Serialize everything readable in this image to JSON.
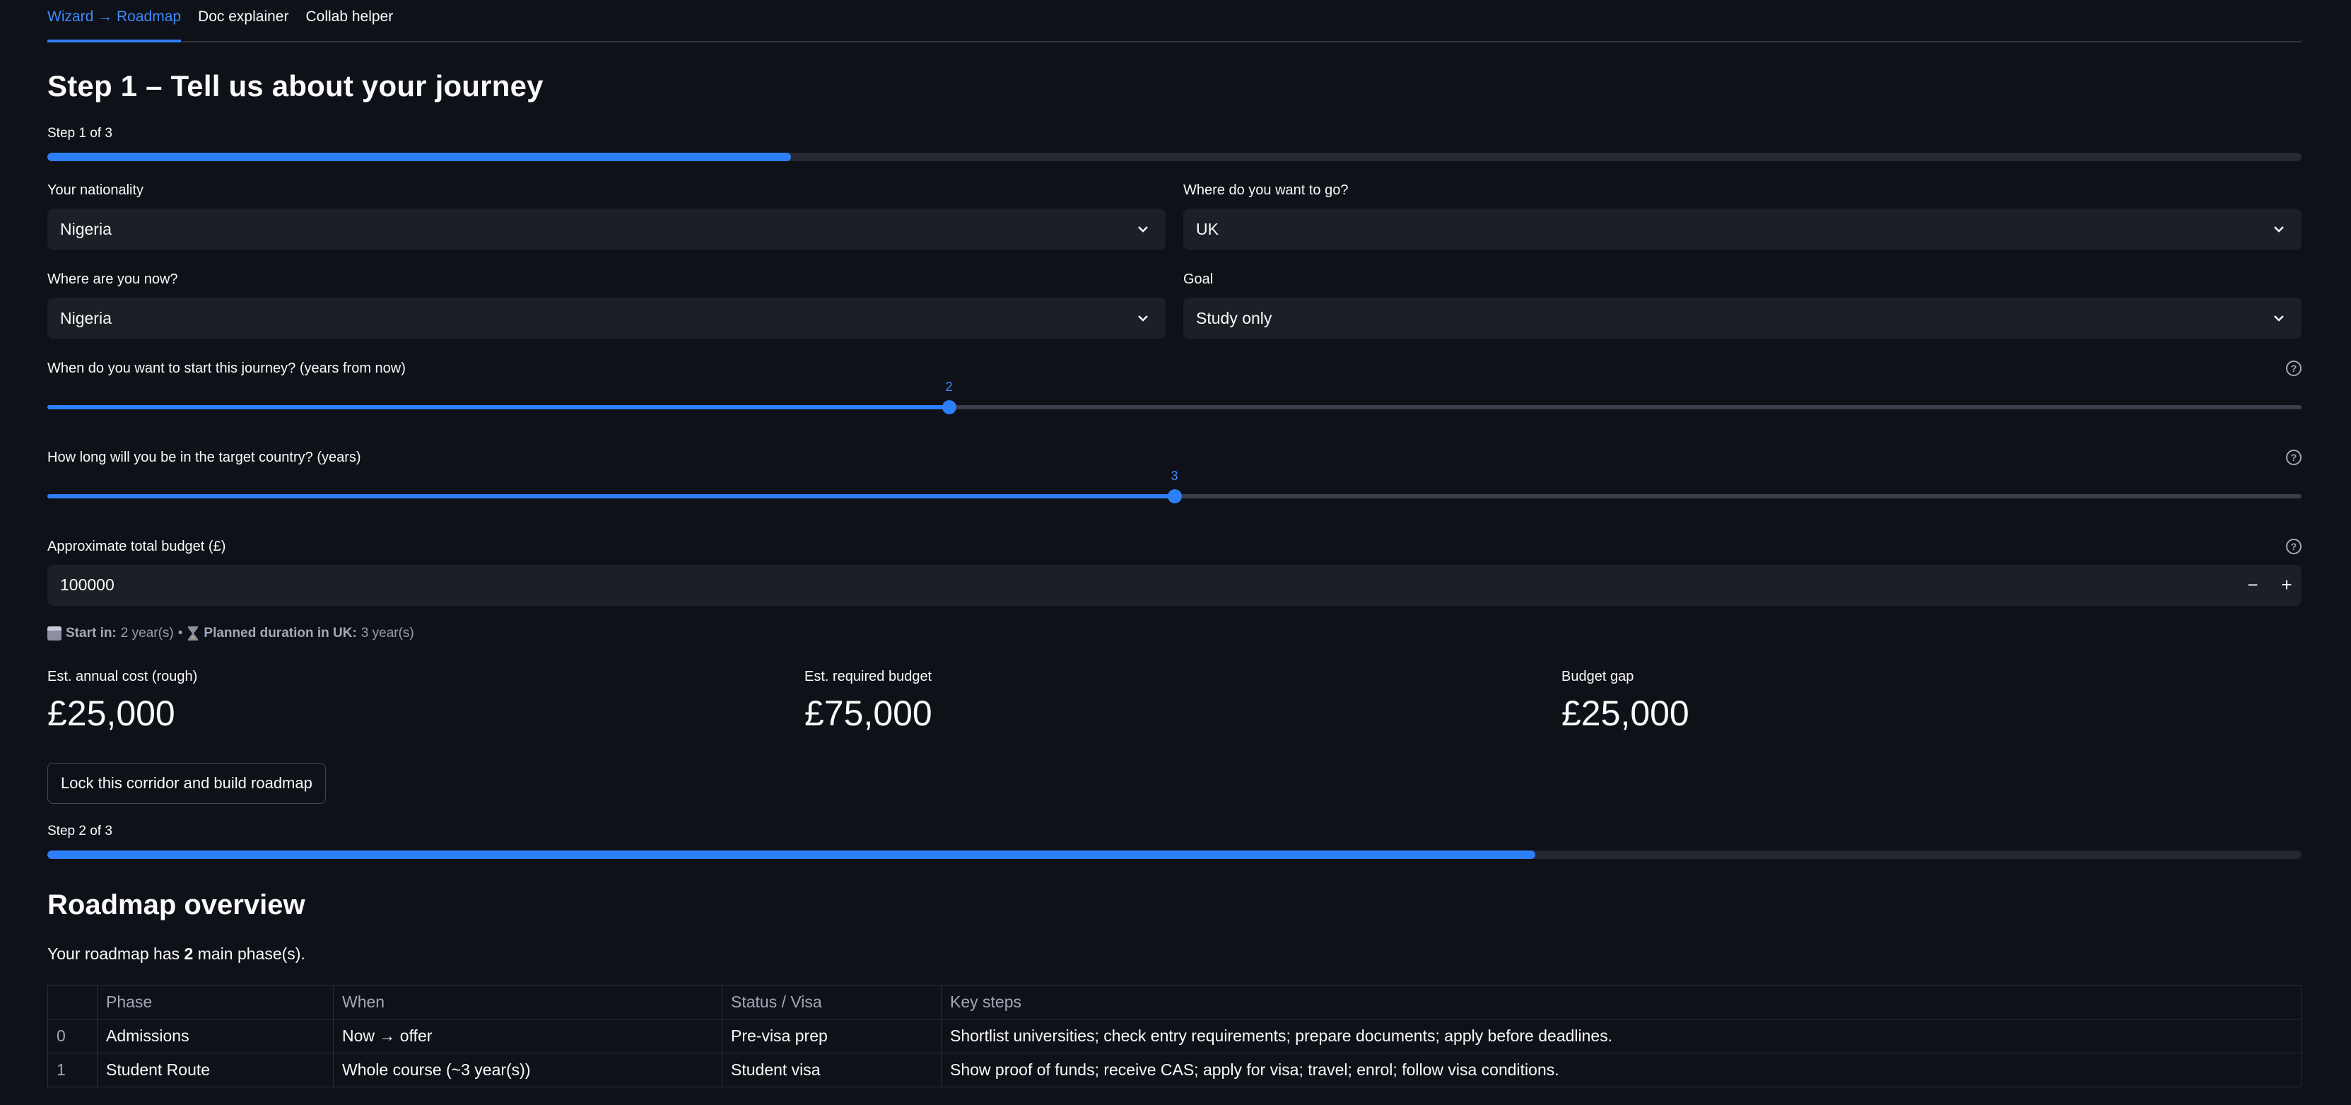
{
  "tabs": [
    {
      "label": "Wizard → Roadmap",
      "active": true
    },
    {
      "label": "Doc explainer",
      "active": false
    },
    {
      "label": "Collab helper",
      "active": false
    }
  ],
  "step1": {
    "title": "Step 1 – Tell us about your journey",
    "progress_text": "Step 1 of 3",
    "progress_fraction": 0.33
  },
  "form": {
    "nationality": {
      "label": "Your nationality",
      "value": "Nigeria"
    },
    "destination": {
      "label": "Where do you want to go?",
      "value": "UK"
    },
    "current_location": {
      "label": "Where are you now?",
      "value": "Nigeria"
    },
    "goal": {
      "label": "Goal",
      "value": "Study only"
    },
    "start_slider": {
      "label": "When do you want to start this journey? (years from now)",
      "value": 2,
      "min": 0,
      "max": 5
    },
    "duration_slider": {
      "label": "How long will you be in the target country? (years)",
      "value": 3,
      "min": 1,
      "max": 5
    },
    "budget": {
      "label": "Approximate total budget (£)",
      "value": "100000",
      "minus": "−",
      "plus": "+"
    }
  },
  "summary": {
    "start_label": "Start in:",
    "start_value": "2 year(s)",
    "separator": "•",
    "duration_label": "Planned duration in UK:",
    "duration_value": "3 year(s)"
  },
  "metrics": [
    {
      "label": "Est. annual cost (rough)",
      "value": "£25,000"
    },
    {
      "label": "Est. required budget",
      "value": "£75,000"
    },
    {
      "label": "Budget gap",
      "value": "£25,000"
    }
  ],
  "lock_button": "Lock this corridor and build roadmap",
  "step2": {
    "progress_text": "Step 2 of 3",
    "progress_fraction": 0.66
  },
  "roadmap": {
    "title": "Roadmap overview",
    "summary_prefix": "Your roadmap has ",
    "phase_count": "2",
    "summary_suffix": " main phase(s).",
    "columns": [
      "",
      "Phase",
      "When",
      "Status / Visa",
      "Key steps"
    ],
    "rows": [
      [
        "0",
        "Admissions",
        "Now → offer",
        "Pre-visa prep",
        "Shortlist universities; check entry requirements; prepare documents; apply before deadlines."
      ],
      [
        "1",
        "Student Route",
        "Whole course (~3 year(s))",
        "Student visa",
        "Show proof of funds; receive CAS; apply for visa; travel; enrol; follow visa conditions."
      ]
    ]
  },
  "colors": {
    "accent": "#2d7ff9",
    "background": "#0e1117",
    "input_bg": "#1c1f26"
  }
}
